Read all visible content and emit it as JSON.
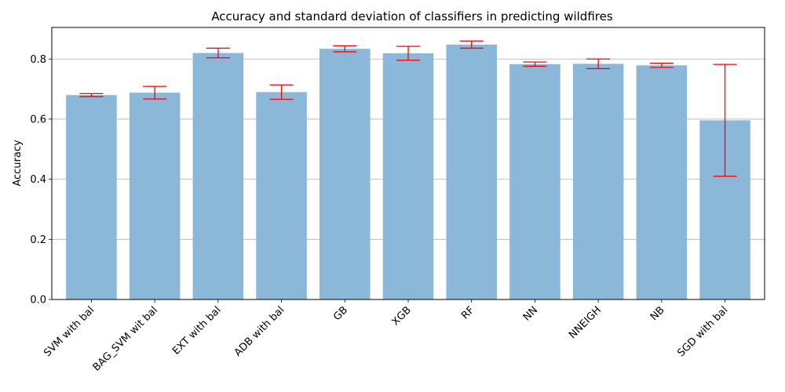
{
  "chart_data": {
    "type": "bar",
    "title": "Accuracy and standard deviation of classifiers in predicting wildfires",
    "xlabel": "",
    "ylabel": "Accuracy",
    "categories": [
      "SVM with bal",
      "BAG_SVM wit bal",
      "EXT with bal",
      "ADB with bal",
      "GB",
      "XGB",
      "RF",
      "NN",
      "NNEIGH",
      "NB",
      "SGD with bal"
    ],
    "values": [
      0.68,
      0.688,
      0.82,
      0.69,
      0.834,
      0.819,
      0.848,
      0.783,
      0.784,
      0.779,
      0.596
    ],
    "errors": [
      0.005,
      0.021,
      0.016,
      0.024,
      0.01,
      0.023,
      0.012,
      0.007,
      0.016,
      0.007,
      0.186
    ],
    "ylim": [
      0,
      0.905
    ],
    "yticks": [
      "0.0",
      "0.2",
      "0.4",
      "0.6",
      "0.8"
    ],
    "grid": "y",
    "colors": {
      "bar": "#8bb8d9",
      "error": "#ff0000",
      "grid": "#b0b0b0",
      "axis": "#000000"
    }
  }
}
